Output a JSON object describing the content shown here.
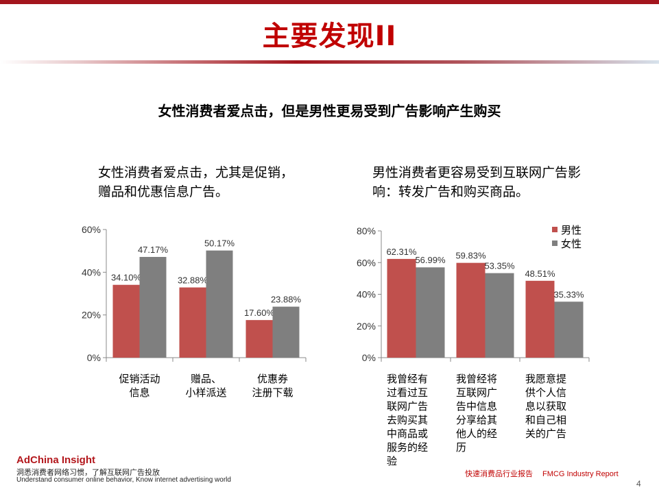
{
  "slide": {
    "title": "主要发现II",
    "headline": "女性消费者爱点击，但是男性更易受到广告影响产生购买",
    "left_subtitle": "女性消费者爱点击，尤其是促销，赠品和优惠信息广告。",
    "right_subtitle": "男性消费者更容易受到互联网广告影响：转发广告和购买商品。",
    "page_number": "4"
  },
  "footer": {
    "brand": "AdChina Insight",
    "tagline_cn": "洞悉消费者网络习惯，了解互联网广告投放",
    "tagline_en": "Understand consumer online behavior, Know internet advertising world",
    "report_cn": "快速消费品行业报告",
    "report_en": "FMCG Industry Report"
  },
  "colors": {
    "male": "#c0504d",
    "female": "#7f7f7f",
    "accent": "#c00000",
    "topbar": "#a3151d"
  },
  "chart_data": [
    {
      "type": "bar",
      "categories": [
        "促销活动\n信息",
        "赠品、\n小样派送",
        "优惠券\n注册下载"
      ],
      "series": [
        {
          "name": "",
          "color": "#c0504d",
          "values": [
            34.1,
            32.88,
            17.6
          ]
        },
        {
          "name": "",
          "color": "#7f7f7f",
          "values": [
            47.17,
            50.17,
            23.88
          ]
        }
      ],
      "value_labels": [
        [
          "34.10%",
          "32.88%",
          "17.60%"
        ],
        [
          "47.17%",
          "50.17%",
          "23.88%"
        ]
      ],
      "y_ticks": [
        "0%",
        "20%",
        "40%",
        "60%"
      ],
      "ylim": [
        0,
        60
      ],
      "legend": false,
      "grid": false
    },
    {
      "type": "bar",
      "categories": [
        "我曾经有\n过看过互\n联网广告\n去购买其\n中商品或\n服务的经\n验",
        "我曾经将\n互联网广\n告中信息\n分享给其\n他人的经\n历",
        "我愿意提\n供个人信\n息以获取\n和自己相\n关的广告"
      ],
      "series": [
        {
          "name": "男性",
          "color": "#c0504d",
          "values": [
            62.31,
            59.83,
            48.51
          ]
        },
        {
          "name": "女性",
          "color": "#7f7f7f",
          "values": [
            56.99,
            53.35,
            35.33
          ]
        }
      ],
      "value_labels": [
        [
          "62.31%",
          "59.83%",
          "48.51%"
        ],
        [
          "56.99%",
          "53.35%",
          "35.33%"
        ]
      ],
      "y_ticks": [
        "0%",
        "20%",
        "40%",
        "60%",
        "80%"
      ],
      "ylim": [
        0,
        80
      ],
      "legend": "top-right",
      "grid": false
    }
  ]
}
